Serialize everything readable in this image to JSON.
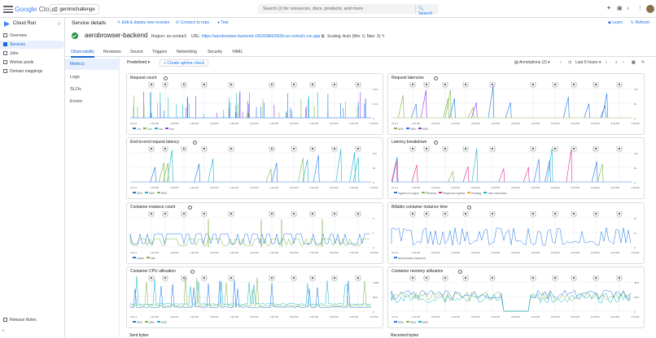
{
  "topbar": {
    "brand_google": "Google",
    "brand_cloud": "Cloud",
    "project": "geminichallenge",
    "search_placeholder": "Search (/) for resources, docs, products, and more",
    "search_button": "Search"
  },
  "sidebar": {
    "product": "Cloud Run",
    "items": [
      {
        "label": "Overview"
      },
      {
        "label": "Services"
      },
      {
        "label": "Jobs"
      },
      {
        "label": "Worker pools"
      },
      {
        "label": "Domain mappings"
      }
    ],
    "release_notes": "Release Notes"
  },
  "header": {
    "title": "Service details",
    "edit": "Edit & deploy new revision",
    "connect": "Connect to repo",
    "test": "Test",
    "learn": "Learn",
    "refresh": "Refresh"
  },
  "service": {
    "name": "aerobrowser-backend",
    "region": "Region: us-central1",
    "url_label": "URL:",
    "url": "https://aerobrowser-backend-1002638420039.us-central1.run.app",
    "scaling": "Scaling: Auto (Min: 0, Max: 3)"
  },
  "tabs": [
    "Observability",
    "Revisions",
    "Source",
    "Triggers",
    "Networking",
    "Security",
    "YAML"
  ],
  "subnav": [
    "Metrics",
    "Logs",
    "SLOs",
    "Errors"
  ],
  "toolbar": {
    "predefined": "Predefined",
    "uptime": "Create uptime check",
    "annotations": "Annotations (2)",
    "range": "Last 6 hours"
  },
  "x_ticks": [
    "UTC-4",
    "1:30 PM",
    "2:00 PM",
    "2:30 PM",
    "3:00 PM",
    "3:30 PM",
    "4:00 PM",
    "4:30 PM",
    "5:00 PM",
    "5:30 PM",
    "6:00 PM",
    "6:30 PM",
    "7:00 PM"
  ],
  "colors": {
    "blue": "#1a73e8",
    "green": "#7cb342",
    "teal": "#12b5cb",
    "purple": "#9334e6",
    "pink": "#e52592",
    "orange": "#f9ab00"
  },
  "charts": [
    {
      "title": "Request count",
      "legend": [
        [
          "1xx",
          "#1a73e8"
        ],
        [
          "2xx",
          "#7cb342"
        ],
        [
          "3xx",
          "#12b5cb"
        ],
        [
          "4xx",
          "#9334e6"
        ]
      ],
      "yticks": [
        "0.2/s",
        "0.1/s",
        "0"
      ]
    },
    {
      "title": "Request latencies",
      "legend": [
        [
          "50%",
          "#7cb342"
        ],
        [
          "95%",
          "#1a73e8"
        ],
        [
          "99%",
          "#9334e6"
        ]
      ],
      "yticks": [
        "10s",
        "5s",
        "0"
      ]
    },
    {
      "title": "End-to-end request latency",
      "legend": [
        [
          "50%",
          "#1a73e8"
        ],
        [
          "95%",
          "#12b5cb"
        ],
        [
          "99%",
          "#7cb342"
        ]
      ],
      "yticks": [
        "10s",
        "5s",
        "0"
      ]
    },
    {
      "title": "Latency breakdown",
      "legend": [
        [
          "Ingress to region",
          "#1a73e8"
        ],
        [
          "Pending",
          "#7cb342"
        ],
        [
          "Response egress",
          "#e52592"
        ],
        [
          "Routing",
          "#f9ab00"
        ],
        [
          "User execution",
          "#12b5cb"
        ]
      ],
      "yticks": [
        "10s",
        "5s",
        "0"
      ]
    },
    {
      "title": "Container instance count",
      "legend": [
        [
          "active",
          "#1a73e8"
        ],
        [
          "idle",
          "#7cb342"
        ]
      ],
      "yticks": [
        "2",
        "1",
        "0"
      ]
    },
    {
      "title": "Billable container instance time",
      "legend": [
        [
          "aerobrowser-backend",
          "#1a73e8"
        ]
      ],
      "yticks": [
        "2s",
        "1s",
        "0"
      ]
    },
    {
      "title": "Container CPU utilization",
      "legend": [
        [
          "50%",
          "#1a73e8"
        ],
        [
          "95%",
          "#7cb342"
        ],
        [
          "99%",
          "#12b5cb"
        ]
      ],
      "yticks": [
        "100%",
        "50%",
        "0"
      ]
    },
    {
      "title": "Container memory utilization",
      "legend": [
        [
          "50%",
          "#1a73e8"
        ],
        [
          "95%",
          "#7cb342"
        ],
        [
          "99%",
          "#12b5cb"
        ]
      ],
      "yticks": [
        "40%",
        "20%",
        "0"
      ]
    }
  ],
  "bottom_titles": [
    "Sent bytes",
    "Received bytes"
  ]
}
